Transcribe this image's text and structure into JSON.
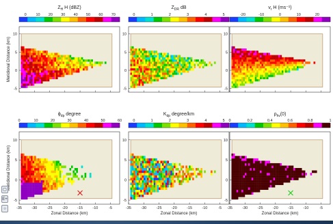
{
  "side_buttons": [
    {
      "label": "",
      "icon": "window-icon"
    },
    {
      "label": "E+",
      "icon": "zoom-icon"
    },
    {
      "label": "",
      "icon": "pan-icon"
    }
  ],
  "chart_data": [
    {
      "type": "heatmap",
      "title_main": "Z",
      "title_sub": "H",
      "title_rest": " H (dBZ)",
      "colorbar": {
        "ticks": [
          "0",
          "10",
          "20",
          "30",
          "40",
          "50",
          "60",
          "70"
        ],
        "range": [
          -5,
          75
        ],
        "colors": [
          "#1a3cff",
          "#00b8ff",
          "#00e0d0",
          "#00c800",
          "#7ee000",
          "#ffff00",
          "#ffc000",
          "#ff6000",
          "#ff0000",
          "#c00000",
          "#ff00ff",
          "#9000c0"
        ]
      },
      "xlabel": "",
      "ylabel": "Meridional Distance (km)",
      "xlim": [
        -35,
        -2
      ],
      "ylim": [
        -6,
        12
      ],
      "xticks": [
        "-35",
        "-30",
        "-25",
        "-20",
        "-15",
        "-10",
        "-5"
      ],
      "yticks": [
        "10",
        "5",
        "0",
        "-5"
      ],
      "show_xticklabels": false,
      "show_ylabels": true,
      "pattern": "zh"
    },
    {
      "type": "heatmap",
      "title_main": "Z",
      "title_sub": "DR",
      "title_rest": " dB",
      "colorbar": {
        "ticks": [
          "0",
          "1",
          "2",
          "3",
          "4",
          "5"
        ],
        "range": [
          -0.3,
          5.3
        ],
        "colors": [
          "#1a3cff",
          "#00b8ff",
          "#00e0d0",
          "#00c800",
          "#7ee000",
          "#ffff00",
          "#ffc000",
          "#ff6000",
          "#ff0000",
          "#c00000",
          "#ff00ff",
          "#9000c0"
        ]
      },
      "xlabel": "",
      "ylabel": "",
      "xlim": [
        -35,
        -2
      ],
      "ylim": [
        -6,
        12
      ],
      "xticks": [
        "-35",
        "-30",
        "-25",
        "-20",
        "-15",
        "-10",
        "-5"
      ],
      "yticks": [
        "10",
        "5",
        "0",
        "-5"
      ],
      "show_xticklabels": false,
      "show_ylabels": false,
      "pattern": "zdr"
    },
    {
      "type": "heatmap",
      "title_main": "v",
      "title_sub": "r",
      "title_rest": " H (ms⁻¹)",
      "colorbar": {
        "ticks": [
          "-20",
          "-10",
          "0",
          "10",
          "20"
        ],
        "range": [
          -27,
          27
        ],
        "colors": [
          "#1a3cff",
          "#00b8ff",
          "#00e0d0",
          "#00c800",
          "#7ee000",
          "#ffff00",
          "#ffc000",
          "#ff6000",
          "#ff0000",
          "#c00000",
          "#ff00ff",
          "#9000c0"
        ]
      },
      "xlabel": "",
      "ylabel": "",
      "xlim": [
        -35,
        -2
      ],
      "ylim": [
        -6,
        12
      ],
      "xticks": [
        "-35",
        "-30",
        "-25",
        "-20",
        "-15",
        "-10",
        "-5"
      ],
      "yticks": [
        "10",
        "5",
        "0",
        "-5"
      ],
      "show_xticklabels": false,
      "show_ylabels": false,
      "pattern": "vr"
    },
    {
      "type": "heatmap",
      "title_main": "ϕ",
      "title_sub": "dp",
      "title_rest": " degree",
      "colorbar": {
        "ticks": [
          "0",
          "10",
          "20",
          "30",
          "40",
          "50",
          "60"
        ],
        "range": [
          0,
          60
        ],
        "colors": [
          "#1a3cff",
          "#00b8ff",
          "#00e0d0",
          "#00c800",
          "#7ee000",
          "#ffff00",
          "#ffc000",
          "#ff6000",
          "#ff0000",
          "#c00000",
          "#ff00ff",
          "#9000c0"
        ]
      },
      "xlabel": "Zonal Distance (km)",
      "ylabel": "Meridional Distance (km)",
      "xlim": [
        -35,
        -2
      ],
      "ylim": [
        -6,
        12
      ],
      "xticks": [
        "-35",
        "-30",
        "-25",
        "-20",
        "-15",
        "-10",
        "-5"
      ],
      "yticks": [
        "10",
        "5",
        "0",
        "-5"
      ],
      "show_xticklabels": true,
      "show_ylabels": true,
      "pattern": "phi",
      "marker": {
        "x": -15,
        "y": -3.2,
        "color": "#dd2222"
      }
    },
    {
      "type": "heatmap",
      "title_main": "K",
      "title_sub": "dp",
      "title_rest": " degree/km",
      "colorbar": {
        "ticks": [
          "0",
          "1",
          "2",
          "3",
          "4",
          "5"
        ],
        "range": [
          -0.3,
          5.3
        ],
        "colors": [
          "#1a3cff",
          "#00b8ff",
          "#00e0d0",
          "#00c800",
          "#7ee000",
          "#ffff00",
          "#ffc000",
          "#ff6000",
          "#ff0000",
          "#c00000",
          "#ff00ff",
          "#9000c0"
        ]
      },
      "xlabel": "Zonal Distance (km)",
      "ylabel": "",
      "xlim": [
        -35,
        -2
      ],
      "ylim": [
        -6,
        12
      ],
      "xticks": [
        "-35",
        "-30",
        "-25",
        "-20",
        "-15",
        "-10",
        "-5"
      ],
      "yticks": [
        "10",
        "5",
        "0",
        "-5"
      ],
      "show_xticklabels": true,
      "show_ylabels": false,
      "pattern": "kdp"
    },
    {
      "type": "heatmap",
      "title_main": "ρ",
      "title_sub": "hv",
      "title_rest": "(0)",
      "colorbar": {
        "ticks": [
          "0",
          "0.2",
          "0.4",
          "0.6",
          "0.8",
          "1"
        ],
        "range": [
          0,
          1
        ],
        "colors": [
          "#1a3cff",
          "#00b8ff",
          "#00e0d0",
          "#00c800",
          "#7ee000",
          "#ffff00",
          "#ffc000",
          "#ff6000",
          "#ff0000",
          "#c00000",
          "#ff00ff",
          "#4a0000"
        ]
      },
      "xlabel": "Zonal Distance (km)",
      "ylabel": "",
      "xlim": [
        -35,
        -2
      ],
      "ylim": [
        -6,
        12
      ],
      "xticks": [
        "-35",
        "-30",
        "-25",
        "-20",
        "-15",
        "-10",
        "-5"
      ],
      "yticks": [
        "10",
        "5",
        "0",
        "-5"
      ],
      "show_xticklabels": true,
      "show_ylabels": false,
      "pattern": "rho",
      "marker": {
        "x": -15,
        "y": -3.2,
        "color": "#22cc22"
      }
    }
  ]
}
